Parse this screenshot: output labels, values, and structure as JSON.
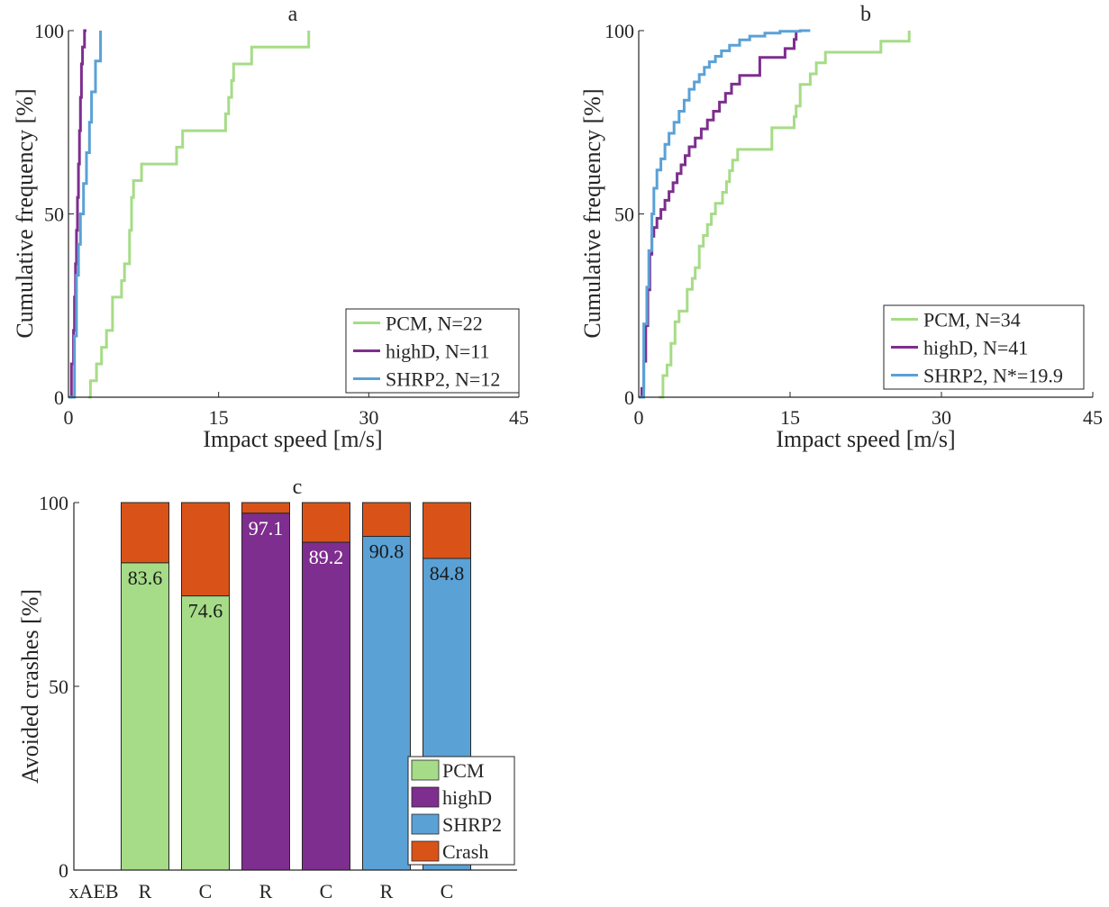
{
  "chart_data": [
    {
      "type": "line",
      "step": true,
      "title": "a",
      "xlabel": "Impact speed [m/s]",
      "ylabel": "Cumulative frequency [%]",
      "xlim": [
        0,
        45
      ],
      "ylim": [
        0,
        100
      ],
      "xticks": [
        0,
        15,
        30,
        45
      ],
      "yticks": [
        0,
        50,
        100
      ],
      "legend_location": "bottom-right",
      "series": [
        {
          "name": "PCM, N=22",
          "color": "#a6dc87",
          "x": [
            2.0,
            2.2,
            2.8,
            3.3,
            3.8,
            4.4,
            5.3,
            5.6,
            6.1,
            6.3,
            6.5,
            7.3,
            10.8,
            11.4,
            15.7,
            16.0,
            16.3,
            16.5,
            18.3,
            24.0,
            24.0
          ],
          "y": [
            0,
            4.5,
            9.1,
            13.6,
            18.2,
            27.3,
            31.8,
            36.4,
            45.5,
            54.5,
            59.1,
            63.6,
            68.2,
            72.7,
            77.3,
            81.8,
            86.4,
            90.9,
            95.5,
            95.5,
            100
          ]
        },
        {
          "name": "highD, N=11",
          "color": "#7e2e8e",
          "x": [
            0,
            0.3,
            0.5,
            0.6,
            0.7,
            0.8,
            0.9,
            1.0,
            1.1,
            1.2,
            1.3,
            1.4,
            1.6,
            1.8
          ],
          "y": [
            0,
            9.1,
            18.2,
            27.3,
            36.4,
            45.5,
            54.5,
            63.6,
            72.7,
            81.8,
            90.9,
            95.5,
            100,
            100
          ]
        },
        {
          "name": "SHRP2, N=12",
          "color": "#5aa1d6",
          "x": [
            0,
            0.6,
            0.8,
            1.0,
            1.2,
            1.5,
            1.8,
            2.1,
            2.3,
            2.7,
            3.1,
            3.2
          ],
          "y": [
            0,
            16.7,
            33.3,
            41.7,
            50,
            58.3,
            66.7,
            75,
            83.3,
            91.7,
            91.7,
            100
          ]
        }
      ]
    },
    {
      "type": "line",
      "step": true,
      "title": "b",
      "xlabel": "Impact speed [m/s]",
      "ylabel": "Cumulative frequency [%]",
      "xlim": [
        0,
        45
      ],
      "ylim": [
        0,
        100
      ],
      "xticks": [
        0,
        15,
        30,
        45
      ],
      "yticks": [
        0,
        50,
        100
      ],
      "legend_location": "bottom-right",
      "series": [
        {
          "name": "PCM, N=34",
          "color": "#a6dc87",
          "x": [
            2.0,
            2.4,
            2.8,
            3.2,
            3.6,
            4.0,
            4.8,
            5.3,
            5.6,
            6.0,
            6.4,
            6.8,
            7.2,
            7.6,
            8.3,
            8.7,
            9.0,
            9.3,
            9.8,
            10.6,
            11.2,
            13.2,
            15.4,
            15.6,
            16.0,
            17.0,
            17.6,
            18.5,
            24.0,
            26.8,
            26.8
          ],
          "y": [
            0,
            5.9,
            8.8,
            14.7,
            20.6,
            23.5,
            29.4,
            32.4,
            35.3,
            41.2,
            44.1,
            47.1,
            50.0,
            52.9,
            55.9,
            58.8,
            61.8,
            64.7,
            67.6,
            67.6,
            67.6,
            73.5,
            76.5,
            79.4,
            85.3,
            88.2,
            91.2,
            94.1,
            97.1,
            97.1,
            100
          ]
        },
        {
          "name": "highD, N=41",
          "color": "#7e2e8e",
          "x": [
            0,
            0.3,
            0.5,
            0.7,
            0.9,
            1.1,
            1.3,
            1.5,
            1.8,
            2.2,
            2.6,
            3.0,
            3.4,
            3.8,
            4.2,
            4.6,
            5.0,
            5.6,
            6.2,
            6.8,
            7.4,
            8.0,
            8.6,
            9.2,
            10.0,
            12.0,
            14.5,
            15.4,
            15.6,
            15.6
          ],
          "y": [
            0,
            2.4,
            9.8,
            19.5,
            29.3,
            39.0,
            43.9,
            46.3,
            48.8,
            51.2,
            53.7,
            56.1,
            58.5,
            61.0,
            63.4,
            65.9,
            68.3,
            70.7,
            73.2,
            75.6,
            78.0,
            80.5,
            82.9,
            85.4,
            87.8,
            92.7,
            95.1,
            97.6,
            100,
            100
          ]
        },
        {
          "name": "SHRP2, N*=19.9",
          "color": "#5aa1d6",
          "x": [
            0,
            0.5,
            0.8,
            1.0,
            1.3,
            1.5,
            1.8,
            2.2,
            2.6,
            3.0,
            3.5,
            4.0,
            4.5,
            5.0,
            5.5,
            6.0,
            6.5,
            7.0,
            7.6,
            8.2,
            9.0,
            10.0,
            11.0,
            12.5,
            14.0,
            16.0,
            17.0
          ],
          "y": [
            0,
            20,
            30,
            40,
            50,
            57,
            62,
            65,
            69,
            72,
            75,
            78,
            81,
            84,
            86,
            88,
            90,
            91.5,
            93,
            94.5,
            96,
            97.5,
            98.5,
            99.3,
            99.8,
            100,
            100
          ]
        }
      ]
    },
    {
      "type": "bar",
      "stacked": true,
      "title": "c",
      "xlabel": "xAEB",
      "ylabel": "Avoided crashes [%]",
      "ylim": [
        0,
        100
      ],
      "yticks": [
        0,
        50,
        100
      ],
      "legend_location": "bottom-right",
      "categories": [
        "R",
        "C",
        "R",
        "C",
        "R",
        "C"
      ],
      "dataset": [
        "PCM",
        "PCM",
        "highD",
        "highD",
        "SHRP2",
        "SHRP2"
      ],
      "values": [
        83.6,
        74.6,
        97.1,
        89.2,
        90.8,
        84.8
      ],
      "value_labels": [
        "83.6",
        "74.6",
        "97.1",
        "89.2",
        "90.8",
        "84.8"
      ],
      "colors": {
        "PCM": "#a6dc87",
        "highD": "#7e2e8e",
        "SHRP2": "#5aa1d6",
        "Crash": "#d95319"
      },
      "legend": [
        "PCM",
        "highD",
        "SHRP2",
        "Crash"
      ]
    }
  ]
}
